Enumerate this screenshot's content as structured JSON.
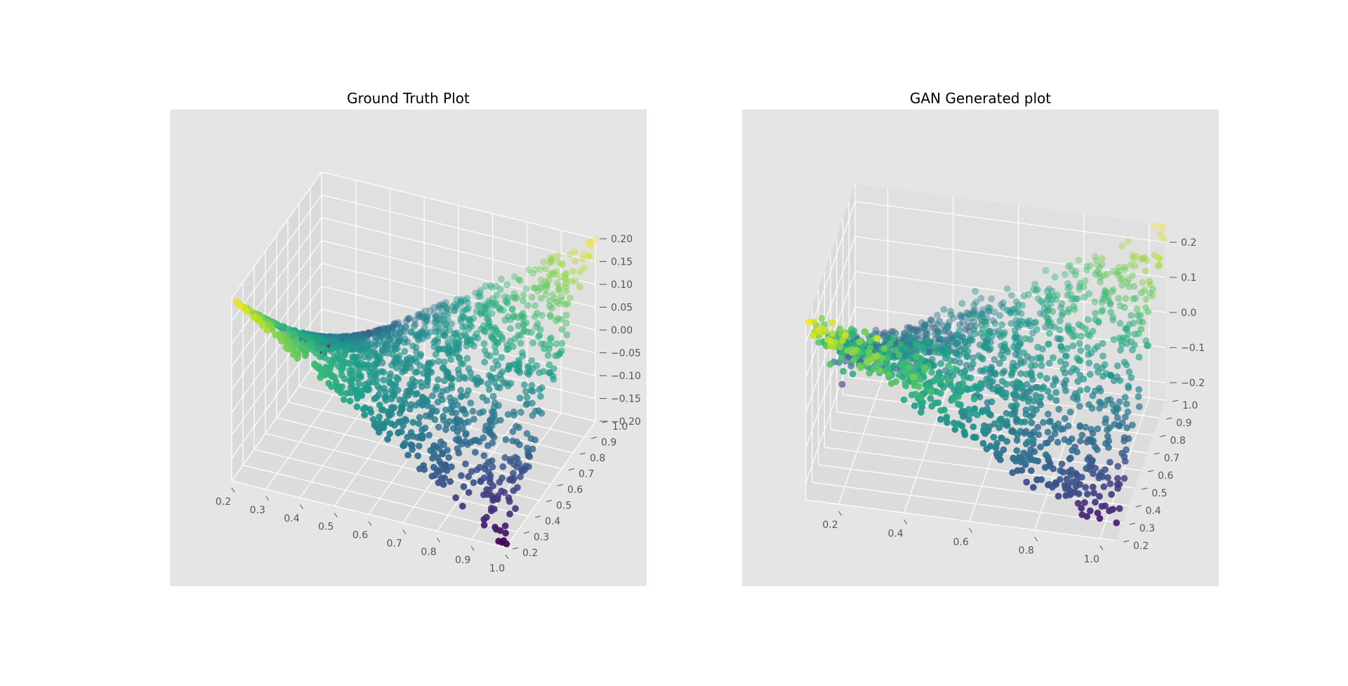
{
  "figure": {
    "background": "#ffffff",
    "pane_color": "#e5e5e5",
    "grid_color": "#ffffff",
    "colormap": "viridis"
  },
  "chart_data": [
    {
      "type": "scatter",
      "projection": "3d",
      "title": "Ground Truth Plot",
      "xlabel": "",
      "ylabel": "",
      "zlabel": "",
      "xlim": [
        0.2,
        1.0
      ],
      "ylim": [
        0.2,
        1.0
      ],
      "zlim": [
        -0.2,
        0.2
      ],
      "x_ticks": [
        "0.2",
        "0.3",
        "0.4",
        "0.5",
        "0.6",
        "0.7",
        "0.8",
        "0.9",
        "1.0"
      ],
      "y_ticks": [
        "0.2",
        "0.3",
        "0.4",
        "0.5",
        "0.6",
        "0.7",
        "0.8",
        "0.9",
        "1.0"
      ],
      "z_ticks": [
        "−0.20",
        "−0.15",
        "−0.10",
        "−0.05",
        "0.00",
        "0.05",
        "0.10",
        "0.15",
        "0.20"
      ],
      "grid": true,
      "color_by": "z",
      "surface": "z ≈ 0.2 · (x − 0.6) · (y − 0.6) / 0.16 (saddle)",
      "n_points": 1500,
      "noise": 0.0
    },
    {
      "type": "scatter",
      "projection": "3d",
      "title": "GAN Generated plot",
      "xlabel": "",
      "ylabel": "",
      "zlabel": "",
      "xlim": [
        0.1,
        1.05
      ],
      "ylim": [
        0.2,
        1.0
      ],
      "zlim": [
        -0.25,
        0.25
      ],
      "x_ticks": [
        "0.2",
        "0.4",
        "0.6",
        "0.8",
        "1.0"
      ],
      "y_ticks": [
        "0.2",
        "0.3",
        "0.4",
        "0.5",
        "0.6",
        "0.7",
        "0.8",
        "0.9",
        "1.0"
      ],
      "z_ticks": [
        "−0.2",
        "−0.1",
        "0.0",
        "0.1",
        "0.2"
      ],
      "grid": true,
      "color_by": "z",
      "surface": "z ≈ 0.2 · (x − 0.6) · (y − 0.6) / 0.16 (saddle, noisy)",
      "n_points": 1500,
      "noise": 0.025
    }
  ]
}
